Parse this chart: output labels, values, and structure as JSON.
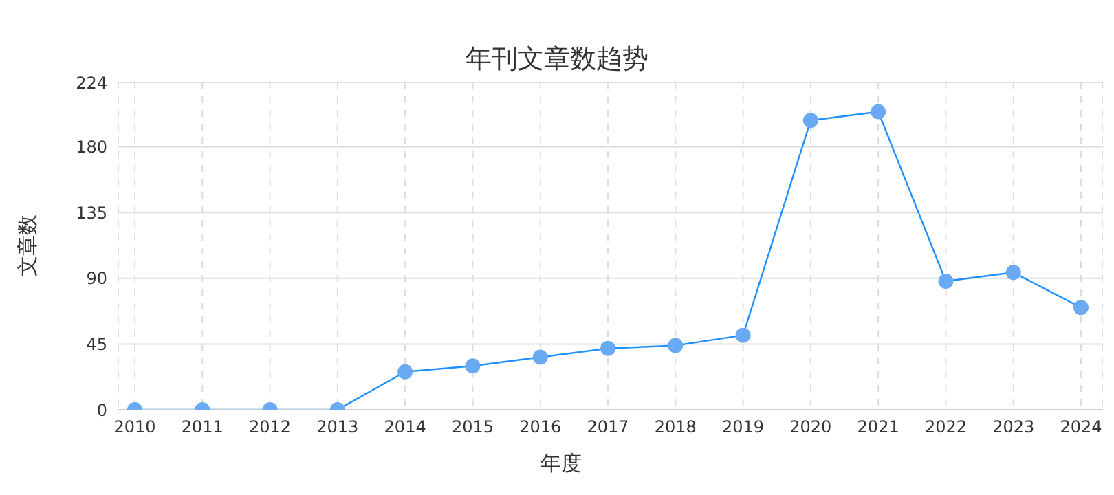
{
  "chart_data": {
    "type": "line",
    "title": "年刊文章数趋势",
    "xlabel": "年度",
    "ylabel": "文章数",
    "categories": [
      "2010",
      "2011",
      "2012",
      "2013",
      "2014",
      "2015",
      "2016",
      "2017",
      "2018",
      "2019",
      "2020",
      "2021",
      "2022",
      "2023",
      "2024"
    ],
    "series": [
      {
        "color": "#1e90ff",
        "values": [
          0,
          0,
          0,
          0,
          26,
          30,
          36,
          42,
          44,
          51,
          198,
          204,
          88,
          94,
          70
        ]
      }
    ],
    "ylim": [
      0,
      224
    ],
    "yticks": [
      0,
      45,
      90,
      135,
      180,
      224
    ],
    "grid": true,
    "marker": "circle",
    "line_style": "solid",
    "legend": false
  }
}
